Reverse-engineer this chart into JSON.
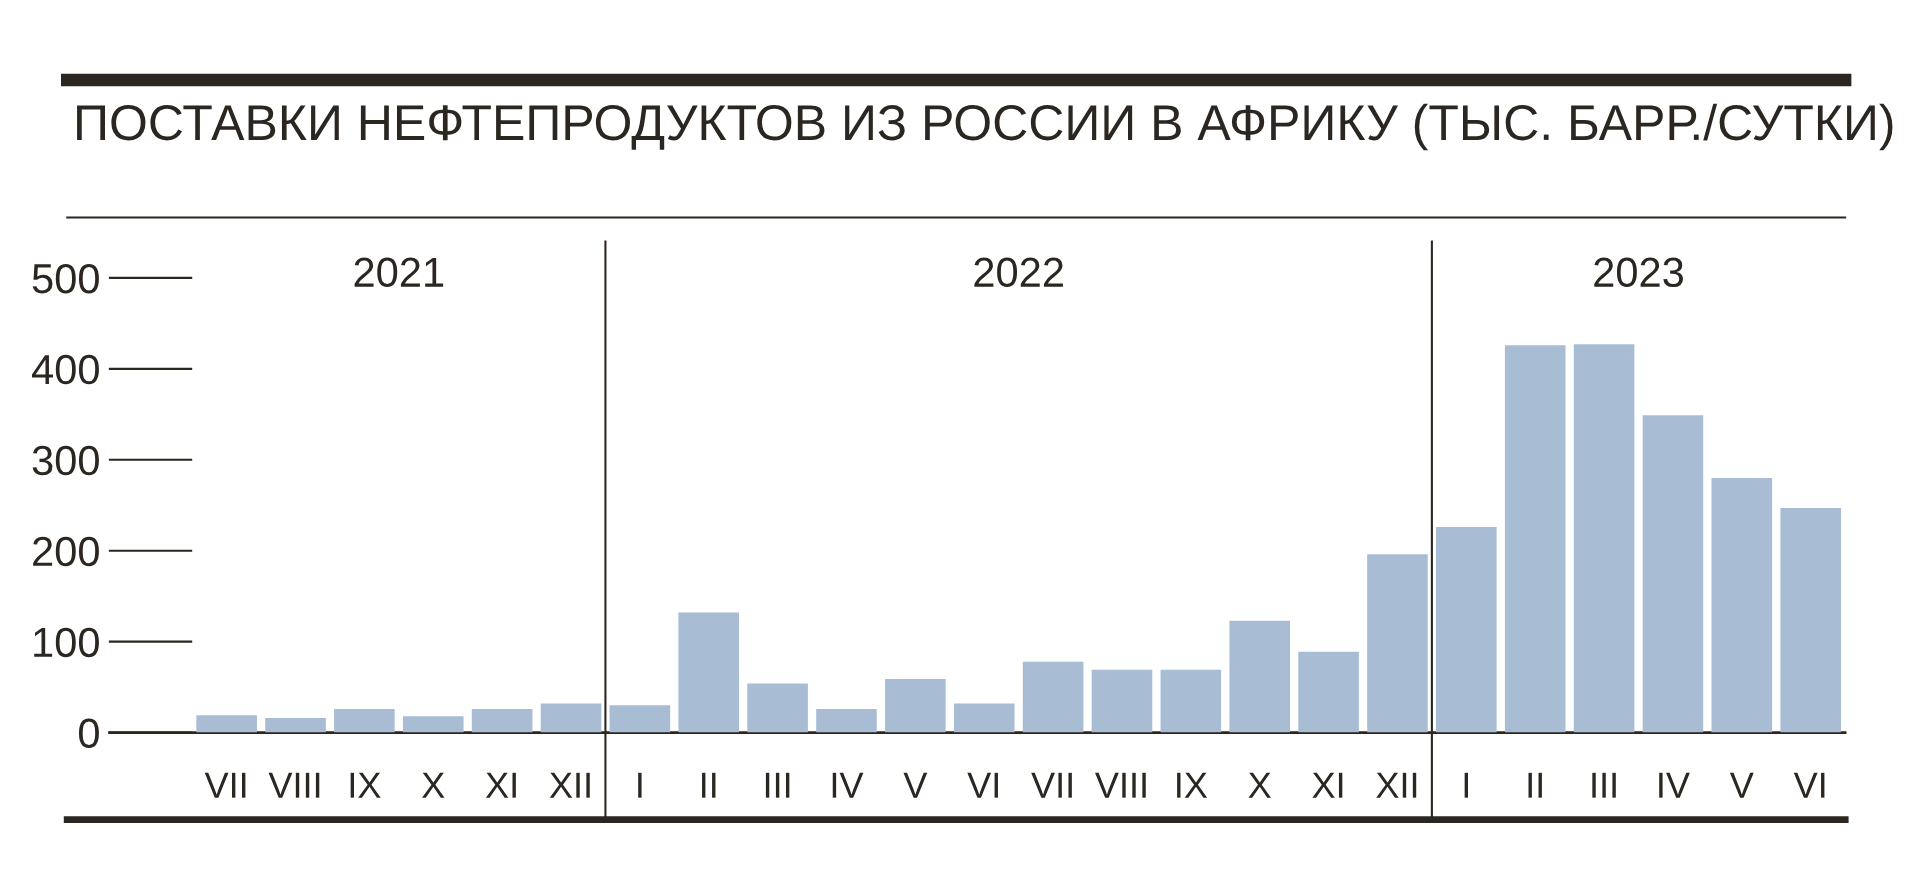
{
  "chart_data": {
    "type": "bar",
    "title": "ПОСТАВКИ НЕФТЕПРОДУКТОВ ИЗ РОССИИ В АФРИКУ (ТЫС. БАРР./СУТКИ)",
    "categories": [
      "VII",
      "VIII",
      "IX",
      "X",
      "XI",
      "XII",
      "I",
      "II",
      "III",
      "IV",
      "V",
      "VI",
      "VII",
      "VIII",
      "IX",
      "X",
      "XI",
      "XII",
      "I",
      "II",
      "III",
      "IV",
      "V",
      "VI"
    ],
    "values": [
      19,
      16,
      26,
      18,
      26,
      32,
      30,
      132,
      54,
      26,
      59,
      32,
      78,
      69,
      69,
      123,
      89,
      196,
      226,
      426,
      427,
      349,
      280,
      247
    ],
    "color": "#a8bdd4",
    "ylim": [
      0,
      540
    ],
    "yticks": [
      0,
      100,
      200,
      300,
      400,
      500
    ],
    "annotations": [
      "2021",
      "2022",
      "2023"
    ],
    "grid": false,
    "legend": false
  }
}
